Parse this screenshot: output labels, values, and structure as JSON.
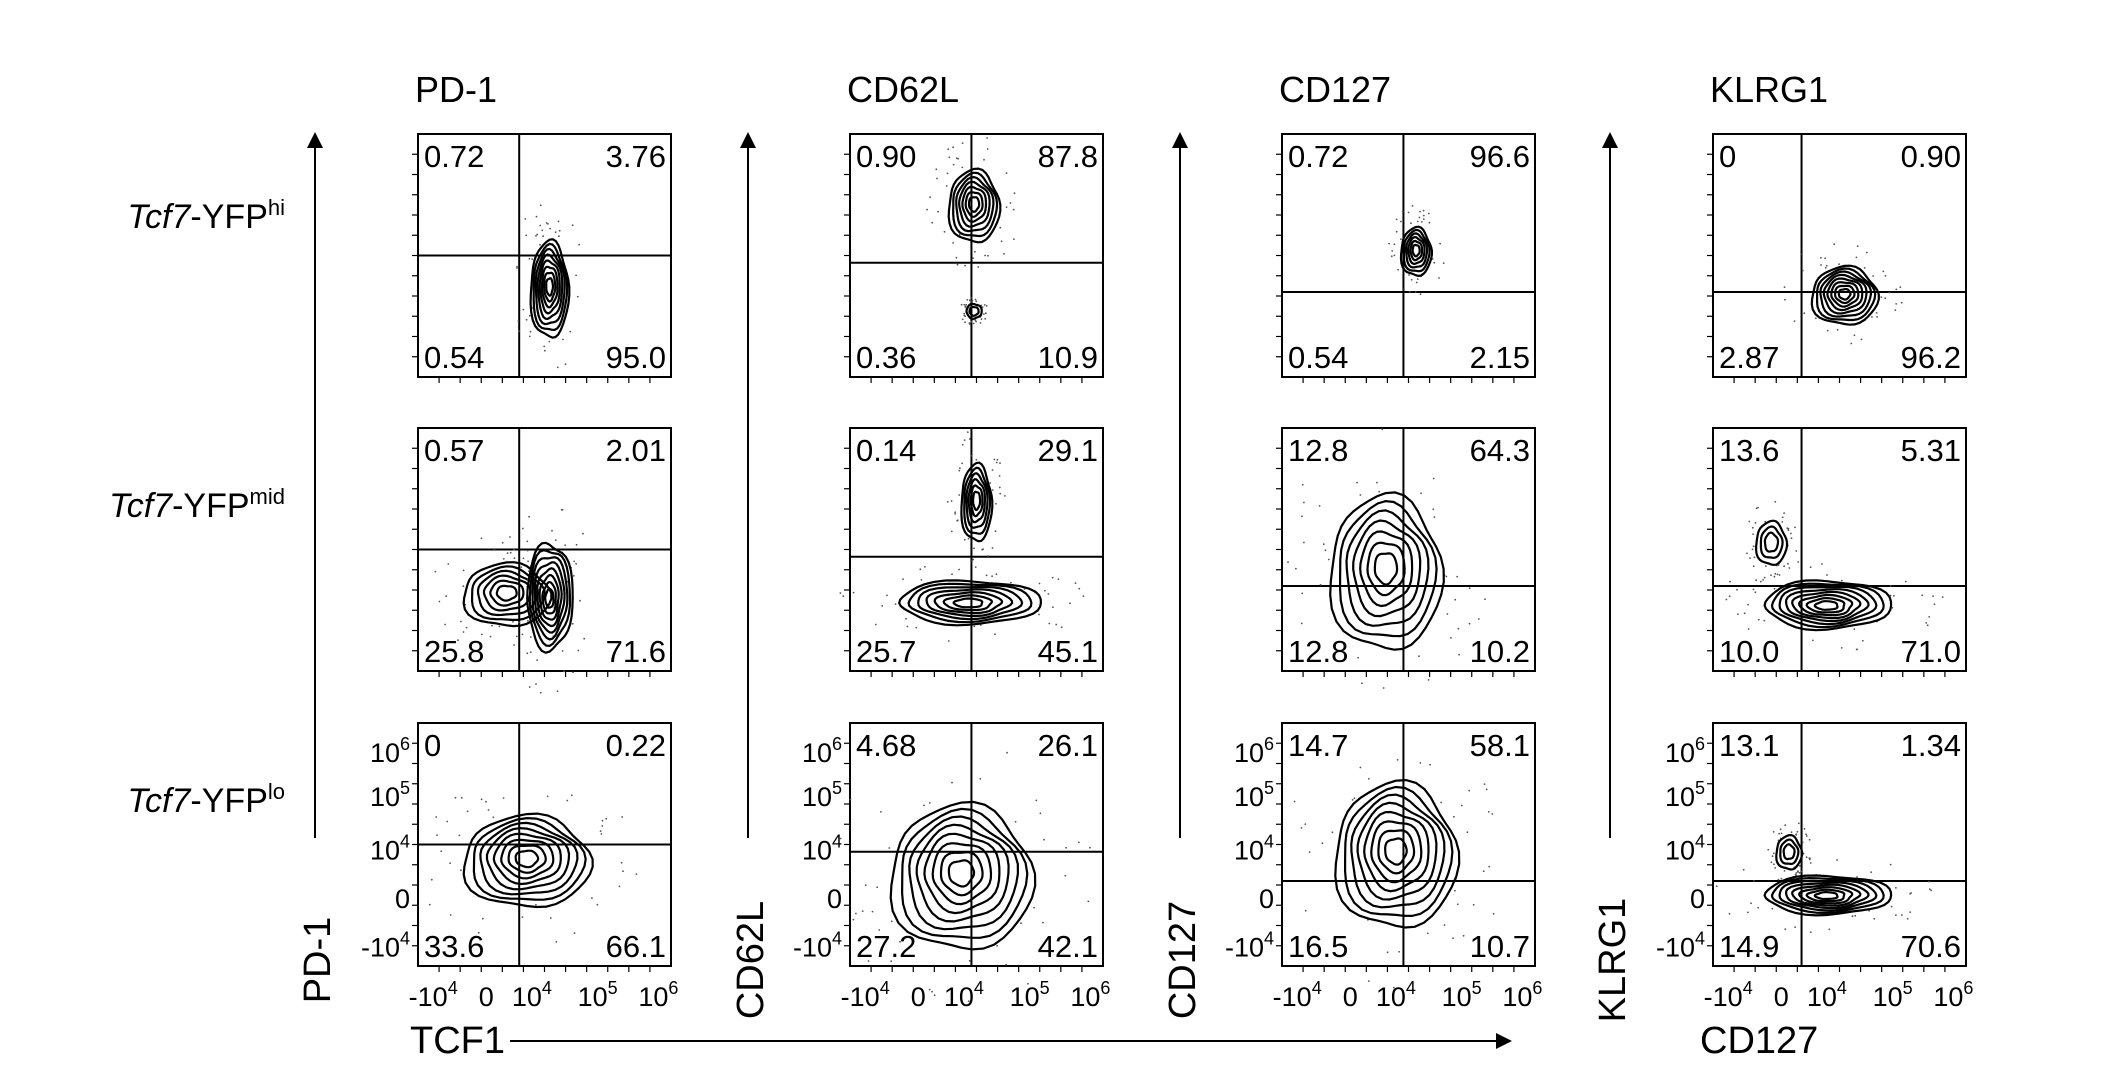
{
  "column_titles": [
    "PD-1",
    "CD62L",
    "CD127",
    "KLRG1"
  ],
  "row_labels": [
    {
      "italic": "Tcf7",
      "plain": "-YFP",
      "sup": "hi"
    },
    {
      "italic": "Tcf7",
      "plain": "-YFP",
      "sup": "mid"
    },
    {
      "italic": "Tcf7",
      "plain": "-YFP",
      "sup": "lo"
    }
  ],
  "axis_titles": {
    "y": [
      "PD-1",
      "CD62L",
      "CD127",
      "KLRG1"
    ],
    "x_shared": "TCF1",
    "x_last": "CD127"
  },
  "tick_labels": {
    "y": [
      {
        "base": "10",
        "sup": "6"
      },
      {
        "base": "10",
        "sup": "5"
      },
      {
        "base": "10",
        "sup": "4"
      },
      {
        "base": "0",
        "sup": ""
      },
      {
        "base": "-10",
        "sup": "4"
      }
    ],
    "x": [
      {
        "base": "-10",
        "sup": "4"
      },
      {
        "base": "0",
        "sup": ""
      },
      {
        "base": "10",
        "sup": "4"
      },
      {
        "base": "10",
        "sup": "5"
      },
      {
        "base": "10",
        "sup": "6"
      }
    ]
  },
  "chart_data": {
    "type": "contour",
    "description_free": true,
    "layout": {
      "rows": 3,
      "cols": 4
    },
    "panels": [
      {
        "row": 0,
        "col": 0,
        "quadrants": {
          "ul": "0.72",
          "ur": "3.76",
          "ll": "0.54",
          "lr": "95.0"
        }
      },
      {
        "row": 0,
        "col": 1,
        "quadrants": {
          "ul": "0.90",
          "ur": "87.8",
          "ll": "0.36",
          "lr": "10.9"
        }
      },
      {
        "row": 0,
        "col": 2,
        "quadrants": {
          "ul": "0.72",
          "ur": "96.6",
          "ll": "0.54",
          "lr": "2.15"
        }
      },
      {
        "row": 0,
        "col": 3,
        "quadrants": {
          "ul": "0",
          "ur": "0.90",
          "ll": "2.87",
          "lr": "96.2"
        }
      },
      {
        "row": 1,
        "col": 0,
        "quadrants": {
          "ul": "0.57",
          "ur": "2.01",
          "ll": "25.8",
          "lr": "71.6"
        }
      },
      {
        "row": 1,
        "col": 1,
        "quadrants": {
          "ul": "0.14",
          "ur": "29.1",
          "ll": "25.7",
          "lr": "45.1"
        }
      },
      {
        "row": 1,
        "col": 2,
        "quadrants": {
          "ul": "12.8",
          "ur": "64.3",
          "ll": "12.8",
          "lr": "10.2"
        }
      },
      {
        "row": 1,
        "col": 3,
        "quadrants": {
          "ul": "13.6",
          "ur": "5.31",
          "ll": "10.0",
          "lr": "71.0"
        }
      },
      {
        "row": 2,
        "col": 0,
        "quadrants": {
          "ul": "0",
          "ur": "0.22",
          "ll": "33.6",
          "lr": "66.1"
        }
      },
      {
        "row": 2,
        "col": 1,
        "quadrants": {
          "ul": "4.68",
          "ur": "26.1",
          "ll": "27.2",
          "lr": "42.1"
        }
      },
      {
        "row": 2,
        "col": 2,
        "quadrants": {
          "ul": "14.7",
          "ur": "58.1",
          "ll": "16.5",
          "lr": "10.7"
        }
      },
      {
        "row": 2,
        "col": 3,
        "quadrants": {
          "ul": "13.1",
          "ur": "1.34",
          "ll": "14.9",
          "lr": "70.6"
        }
      }
    ]
  }
}
